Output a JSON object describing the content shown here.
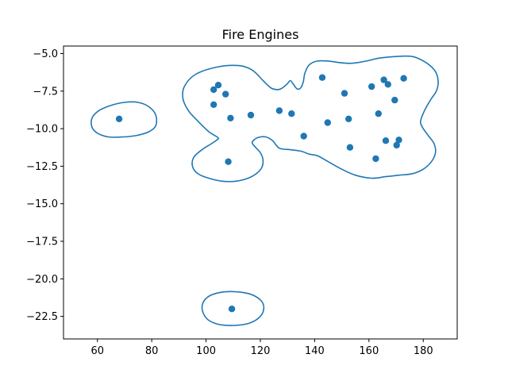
{
  "chart_data": {
    "type": "scatter",
    "title": "Fire Engines",
    "xlabel": "",
    "ylabel": "",
    "xlim": [
      47.5,
      192.5
    ],
    "ylim": [
      -24.0,
      -4.5
    ],
    "x_ticks": [
      60,
      80,
      100,
      120,
      140,
      160,
      180
    ],
    "y_ticks": [
      -5.0,
      -7.5,
      -10.0,
      -12.5,
      -15.0,
      -17.5,
      -20.0,
      -22.5
    ],
    "grid": false,
    "legend": "none",
    "colors": {
      "points": "#1f77b4",
      "contours": "#1f77b4"
    },
    "series": [
      {
        "values": [
          [
            68,
            -9.35
          ],
          [
            102.8,
            -7.4
          ],
          [
            104.5,
            -7.1
          ],
          [
            107.2,
            -7.7
          ],
          [
            102.8,
            -8.4
          ],
          [
            109,
            -9.3
          ],
          [
            116.5,
            -9.1
          ],
          [
            108.2,
            -12.2
          ],
          [
            127,
            -8.8
          ],
          [
            131.5,
            -9.0
          ],
          [
            136,
            -10.5
          ],
          [
            142.8,
            -6.6
          ],
          [
            144.8,
            -9.6
          ],
          [
            151,
            -7.65
          ],
          [
            152.5,
            -9.35
          ],
          [
            153,
            -11.25
          ],
          [
            161,
            -7.2
          ],
          [
            162.5,
            -12.0
          ],
          [
            163.5,
            -9.0
          ],
          [
            165.5,
            -6.75
          ],
          [
            167,
            -7.05
          ],
          [
            166.2,
            -10.8
          ],
          [
            169.5,
            -8.1
          ],
          [
            170.2,
            -11.1
          ],
          [
            171,
            -10.75
          ],
          [
            172.8,
            -6.65
          ],
          [
            109.5,
            -22.0
          ]
        ]
      }
    ],
    "contours": [
      [
        [
          92,
          -7.2
        ],
        [
          96,
          -6.4
        ],
        [
          104,
          -5.9
        ],
        [
          112,
          -5.8
        ],
        [
          117,
          -6.1
        ],
        [
          121,
          -6.8
        ],
        [
          124,
          -7.3
        ],
        [
          126.5,
          -7.4
        ],
        [
          128,
          -7.3
        ],
        [
          130,
          -7.0
        ],
        [
          131,
          -6.8
        ],
        [
          132,
          -7.0
        ],
        [
          133.5,
          -7.35
        ],
        [
          134.8,
          -7.3
        ],
        [
          135.8,
          -6.9
        ],
        [
          136.4,
          -6.3
        ],
        [
          138,
          -5.75
        ],
        [
          141,
          -5.5
        ],
        [
          145,
          -5.5
        ],
        [
          149,
          -5.6
        ],
        [
          153,
          -5.65
        ],
        [
          156,
          -5.6
        ],
        [
          159,
          -5.5
        ],
        [
          164,
          -5.3
        ],
        [
          170,
          -5.2
        ],
        [
          176,
          -5.2
        ],
        [
          181,
          -5.6
        ],
        [
          184.5,
          -6.2
        ],
        [
          185.5,
          -6.9
        ],
        [
          184.8,
          -7.5
        ],
        [
          183,
          -8.0
        ],
        [
          181,
          -8.6
        ],
        [
          179.5,
          -9.2
        ],
        [
          179,
          -9.6
        ],
        [
          180,
          -10.0
        ],
        [
          182,
          -10.5
        ],
        [
          184,
          -11.0
        ],
        [
          184.5,
          -11.6
        ],
        [
          183,
          -12.2
        ],
        [
          180,
          -12.7
        ],
        [
          176,
          -13.0
        ],
        [
          171,
          -13.1
        ],
        [
          166,
          -13.2
        ],
        [
          161,
          -13.3
        ],
        [
          155,
          -13.1
        ],
        [
          150,
          -12.7
        ],
        [
          145,
          -12.2
        ],
        [
          141,
          -11.8
        ],
        [
          138,
          -11.7
        ],
        [
          135,
          -11.5
        ],
        [
          131,
          -11.4
        ],
        [
          127,
          -11.3
        ],
        [
          124.5,
          -10.8
        ],
        [
          122,
          -10.55
        ],
        [
          119,
          -10.6
        ],
        [
          117,
          -10.9
        ],
        [
          118,
          -11.2
        ],
        [
          120,
          -11.6
        ],
        [
          121,
          -12.1
        ],
        [
          120.5,
          -12.6
        ],
        [
          118.5,
          -13.0
        ],
        [
          115.5,
          -13.3
        ],
        [
          111,
          -13.5
        ],
        [
          106,
          -13.5
        ],
        [
          101,
          -13.3
        ],
        [
          97,
          -13.0
        ],
        [
          95,
          -12.5
        ],
        [
          95.5,
          -11.9
        ],
        [
          98.5,
          -11.4
        ],
        [
          102,
          -11.0
        ],
        [
          104,
          -10.75
        ],
        [
          104.4,
          -10.6
        ],
        [
          101,
          -10.2
        ],
        [
          97,
          -9.5
        ],
        [
          93.5,
          -8.8
        ],
        [
          91.5,
          -8.0
        ],
        [
          92,
          -7.2
        ]
      ],
      [
        [
          58,
          -9.3
        ],
        [
          60.5,
          -8.8
        ],
        [
          65,
          -8.45
        ],
        [
          70,
          -8.25
        ],
        [
          75,
          -8.25
        ],
        [
          79,
          -8.55
        ],
        [
          81.5,
          -9.1
        ],
        [
          81.5,
          -9.8
        ],
        [
          79,
          -10.2
        ],
        [
          74.5,
          -10.45
        ],
        [
          69.5,
          -10.55
        ],
        [
          64,
          -10.55
        ],
        [
          60,
          -10.3
        ],
        [
          58,
          -9.9
        ],
        [
          58,
          -9.3
        ]
      ],
      [
        [
          98.5,
          -21.9
        ],
        [
          100,
          -21.3
        ],
        [
          104,
          -20.95
        ],
        [
          110,
          -20.85
        ],
        [
          116,
          -21.0
        ],
        [
          120,
          -21.4
        ],
        [
          121.3,
          -21.9
        ],
        [
          120,
          -22.5
        ],
        [
          116,
          -22.95
        ],
        [
          110,
          -23.1
        ],
        [
          104,
          -23.0
        ],
        [
          100,
          -22.6
        ],
        [
          98.5,
          -21.9
        ]
      ]
    ]
  }
}
